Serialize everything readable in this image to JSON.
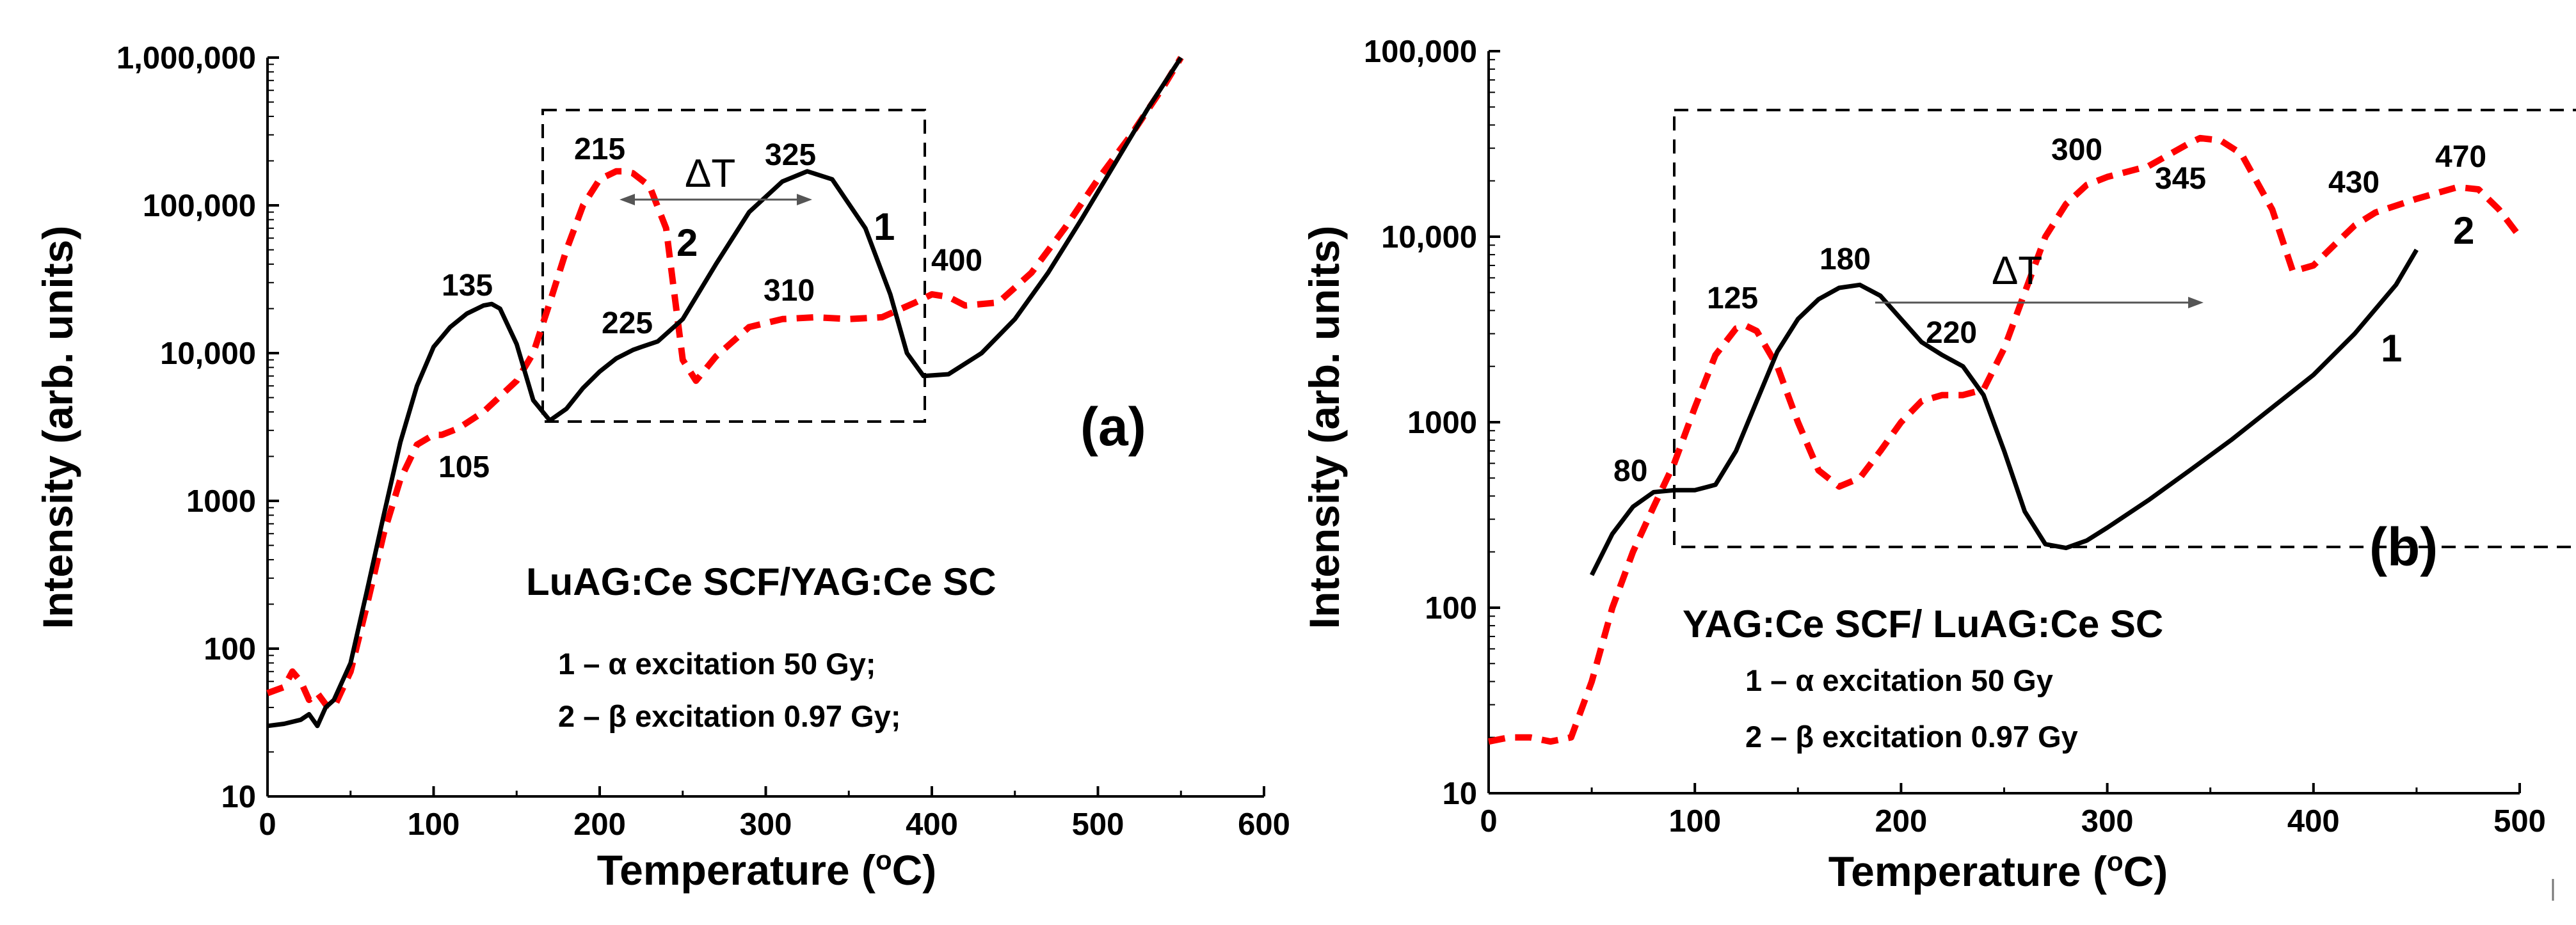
{
  "colors": {
    "series_1": "#000000",
    "series_2": "#ff0000",
    "arrow": "#555555"
  },
  "chart_data": [
    {
      "type": "line",
      "panel": "(a)",
      "xlabel": "Temperature (°C)",
      "ylabel": "Intensity (arb. units)",
      "xlim": [
        0,
        600
      ],
      "ylim": [
        10,
        1000000
      ],
      "yscale": "log",
      "xticks": [
        0,
        100,
        200,
        300,
        400,
        500,
        600
      ],
      "yticks": [
        10,
        100,
        1000,
        10000,
        100000,
        1000000
      ],
      "ytick_labels": [
        "10",
        "100",
        "1000",
        "10,000",
        "100,000",
        "1,000,000"
      ],
      "grid": false,
      "sample": "LuAG:Ce SCF/YAG:Ce SC",
      "legend": [
        "1 – α excitation 50 Gy;",
        "2 – β excitation 0.97 Gy;"
      ],
      "series": [
        {
          "label": "1",
          "style": "solid",
          "color": "#000000",
          "x": [
            0,
            10,
            20,
            25,
            30,
            35,
            40,
            50,
            60,
            70,
            80,
            90,
            100,
            110,
            120,
            130,
            135,
            140,
            150,
            160,
            170,
            180,
            190,
            200,
            210,
            220,
            225,
            235,
            250,
            270,
            290,
            310,
            325,
            340,
            360,
            375,
            385,
            395,
            410,
            430,
            450,
            470,
            490,
            510,
            530,
            550
          ],
          "y": [
            30,
            31,
            33,
            36,
            30,
            40,
            45,
            80,
            250,
            800,
            2500,
            6000,
            11000,
            15000,
            18500,
            21000,
            21500,
            20000,
            11500,
            4800,
            3500,
            4200,
            5800,
            7500,
            9200,
            10500,
            11000,
            12000,
            17000,
            40000,
            90000,
            145000,
            170000,
            150000,
            70000,
            25000,
            10000,
            7000,
            7200,
            10000,
            17000,
            35000,
            80000,
            190000,
            450000,
            1000000
          ]
        },
        {
          "label": "2",
          "style": "dashed",
          "color": "#ff0000",
          "x": [
            0,
            10,
            15,
            20,
            25,
            30,
            35,
            40,
            50,
            60,
            70,
            80,
            90,
            100,
            105,
            115,
            130,
            150,
            160,
            170,
            180,
            190,
            200,
            210,
            215,
            220,
            230,
            240,
            245,
            250,
            258,
            270,
            290,
            310,
            330,
            350,
            370,
            390,
            400,
            410,
            420,
            440,
            460,
            480,
            500,
            520,
            540,
            550
          ],
          "y": [
            50,
            55,
            70,
            60,
            45,
            50,
            42,
            40,
            70,
            200,
            600,
            1400,
            2400,
            2800,
            2800,
            3100,
            4000,
            6500,
            10000,
            22000,
            50000,
            100000,
            150000,
            170000,
            170000,
            165000,
            135000,
            70000,
            25000,
            9000,
            6500,
            9500,
            15000,
            17000,
            17500,
            17000,
            17500,
            22000,
            25000,
            24000,
            21000,
            22000,
            35000,
            70000,
            150000,
            300000,
            650000,
            1000000
          ]
        }
      ],
      "annotations": [
        "215",
        "325",
        "135",
        "225",
        "310",
        "400",
        "105",
        "ΔT",
        "1",
        "2",
        "(a)"
      ]
    },
    {
      "type": "line",
      "panel": "(b)",
      "xlabel": "Temperature (°C)",
      "ylabel": "Intensity (arb. units)",
      "xlim": [
        0,
        500
      ],
      "ylim": [
        10,
        100000
      ],
      "yscale": "log",
      "xticks": [
        0,
        100,
        200,
        300,
        400,
        500
      ],
      "yticks": [
        10,
        100,
        1000,
        10000,
        100000
      ],
      "ytick_labels": [
        "10",
        "100",
        "1000",
        "10,000",
        "100,000"
      ],
      "grid": false,
      "sample": "YAG:Ce SCF/ LuAG:Ce SC",
      "legend": [
        "1 – α excitation 50 Gy",
        "2 – β excitation 0.97 Gy"
      ],
      "series": [
        {
          "label": "1",
          "style": "solid",
          "color": "#000000",
          "x": [
            50,
            60,
            70,
            80,
            90,
            100,
            110,
            120,
            130,
            140,
            150,
            160,
            170,
            180,
            190,
            200,
            210,
            220,
            230,
            240,
            250,
            260,
            270,
            280,
            290,
            300,
            320,
            340,
            360,
            380,
            400,
            420,
            440,
            450
          ],
          "y": [
            150,
            250,
            350,
            420,
            430,
            430,
            460,
            700,
            1300,
            2400,
            3600,
            4600,
            5300,
            5500,
            4800,
            3600,
            2700,
            2300,
            2000,
            1400,
            700,
            330,
            220,
            210,
            230,
            270,
            380,
            550,
            800,
            1200,
            1800,
            3000,
            5500,
            8500
          ]
        },
        {
          "label": "2",
          "style": "dashed",
          "color": "#ff0000",
          "x": [
            0,
            10,
            20,
            30,
            40,
            50,
            60,
            70,
            80,
            90,
            100,
            110,
            120,
            125,
            130,
            140,
            150,
            160,
            170,
            180,
            190,
            200,
            210,
            220,
            230,
            240,
            250,
            260,
            270,
            280,
            290,
            300,
            320,
            340,
            345,
            355,
            365,
            380,
            390,
            400,
            410,
            420,
            430,
            450,
            470,
            480,
            490,
            500
          ],
          "y": [
            19,
            20,
            20,
            19,
            20,
            40,
            100,
            200,
            350,
            600,
            1200,
            2300,
            3200,
            3300,
            3100,
            2000,
            1000,
            550,
            450,
            500,
            700,
            1000,
            1300,
            1400,
            1400,
            1500,
            2500,
            5000,
            10000,
            15000,
            19000,
            21000,
            24000,
            32000,
            34000,
            33000,
            28000,
            14000,
            6500,
            7000,
            9000,
            11500,
            13500,
            16000,
            18500,
            18000,
            14000,
            10000
          ]
        }
      ],
      "annotations": [
        "80",
        "125",
        "180",
        "220",
        "300",
        "345",
        "430",
        "470",
        "ΔT",
        "1",
        "2",
        "(b)"
      ]
    }
  ]
}
